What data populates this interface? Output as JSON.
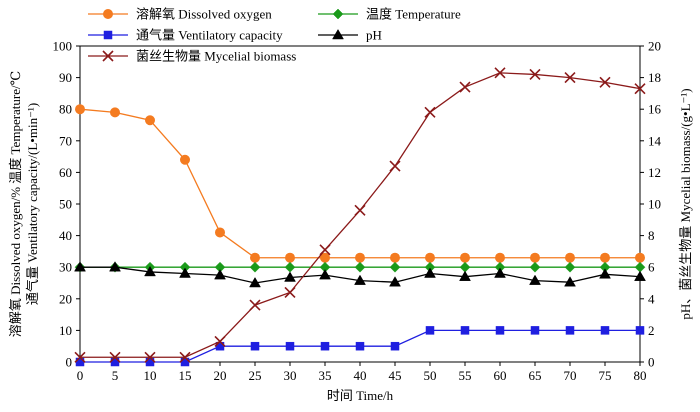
{
  "chart_data": {
    "type": "line",
    "title": "",
    "xlabel": "时间 Time/h",
    "ylabel_left": [
      "溶解氧 Dissolved oxygen/% 温度 Temperature/℃",
      "通气量 Ventilatory capacity/(L•min⁻¹)"
    ],
    "ylabel_right": "pH、菌丝生物量 Mycelial biomass/(g•L⁻¹)",
    "x": [
      0,
      5,
      10,
      15,
      20,
      25,
      30,
      35,
      40,
      45,
      50,
      55,
      60,
      65,
      70,
      75,
      80
    ],
    "xlim": [
      0,
      80
    ],
    "xticks": [
      "0",
      "5",
      "10",
      "15",
      "20",
      "25",
      "30",
      "35",
      "40",
      "45",
      "50",
      "55",
      "60",
      "65",
      "70",
      "75",
      "80"
    ],
    "ylim_left": [
      0,
      100
    ],
    "yticks_left": [
      "0",
      "10",
      "20",
      "30",
      "40",
      "50",
      "60",
      "70",
      "80",
      "90",
      "100"
    ],
    "ylim_right": [
      0,
      20
    ],
    "yticks_right": [
      "0",
      "2",
      "4",
      "6",
      "8",
      "10",
      "12",
      "14",
      "16",
      "18",
      "20"
    ],
    "grid": false,
    "legend_position": "top-left",
    "series": [
      {
        "name": "溶解氧 Dissolved oxygen",
        "axis": "left",
        "marker": "circle",
        "color": "#f47b20",
        "values": [
          80,
          79,
          76.5,
          64,
          41,
          33,
          33,
          33,
          33,
          33,
          33,
          33,
          33,
          33,
          33,
          33,
          33
        ]
      },
      {
        "name": "温度 Temperature",
        "axis": "left",
        "marker": "diamond",
        "color": "#1a9a1a",
        "values": [
          30,
          30,
          30,
          30,
          30,
          30,
          30,
          30,
          30,
          30,
          30,
          30,
          30,
          30,
          30,
          30,
          30
        ]
      },
      {
        "name": "通气量 Ventilatory capacity",
        "axis": "left",
        "marker": "square",
        "color": "#1f1fe0",
        "values": [
          0,
          0,
          0,
          0,
          5,
          5,
          5,
          5,
          5,
          5,
          10,
          10,
          10,
          10,
          10,
          10,
          10
        ]
      },
      {
        "name": "pH",
        "axis": "right",
        "marker": "triangle",
        "color": "#000000",
        "values": [
          6.0,
          6.0,
          5.7,
          5.6,
          5.5,
          5.0,
          5.35,
          5.5,
          5.15,
          5.05,
          5.6,
          5.4,
          5.6,
          5.15,
          5.05,
          5.55,
          5.4
        ]
      },
      {
        "name": "菌丝生物量 Mycelial biomass",
        "axis": "right",
        "marker": "x",
        "color": "#8b1a1a",
        "values": [
          0.3,
          0.3,
          0.3,
          0.3,
          1.3,
          3.6,
          4.4,
          7.1,
          9.6,
          12.4,
          15.8,
          17.4,
          18.3,
          18.2,
          18.0,
          17.7,
          17.3
        ]
      }
    ]
  }
}
